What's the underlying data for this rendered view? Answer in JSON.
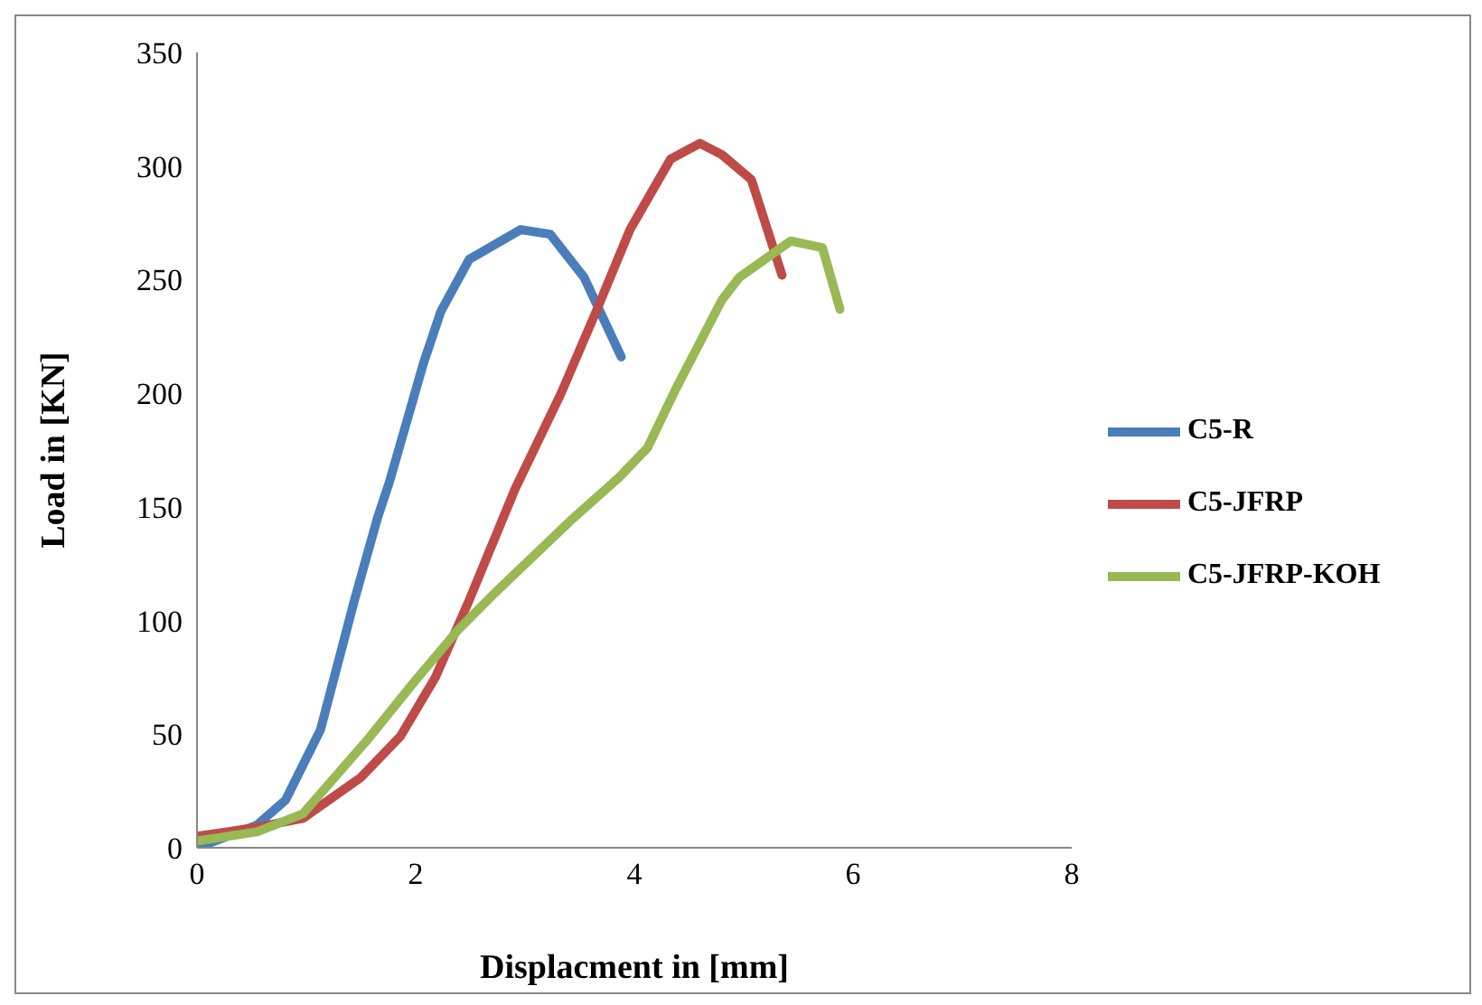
{
  "chart_data": {
    "type": "line",
    "xlabel": "Displacment in [mm]",
    "ylabel": "Load in [KN]",
    "xlim": [
      0,
      8
    ],
    "xticks": [
      0,
      2,
      4,
      6,
      8
    ],
    "ylim": [
      0,
      350
    ],
    "yticks": [
      0,
      50,
      100,
      150,
      200,
      250,
      300,
      350
    ],
    "grid": false,
    "legend": "right",
    "marker": "none",
    "line_style": "solid",
    "series": [
      {
        "name": "C5-R",
        "color": "#4a7ebb",
        "x": [
          0,
          0.55,
          0.81,
          1.13,
          1.44,
          1.65,
          1.76,
          2.07,
          2.23,
          2.49,
          2.96,
          3.23,
          3.54,
          3.88
        ],
        "values": [
          0,
          10,
          21,
          52,
          109,
          145,
          161,
          213,
          236,
          259,
          272,
          270,
          251,
          216
        ]
      },
      {
        "name": "C5-JFRP",
        "color": "#be4b48",
        "x": [
          0,
          0.55,
          0.97,
          1.5,
          1.86,
          2.18,
          2.49,
          2.91,
          3.33,
          3.65,
          3.96,
          4.33,
          4.6,
          4.8,
          5.07,
          5.35
        ],
        "values": [
          5,
          9,
          13,
          31,
          49,
          75,
          109,
          158,
          200,
          236,
          272,
          303,
          310,
          305,
          294,
          252
        ]
      },
      {
        "name": "C5-JFRP-KOH",
        "color": "#98b954",
        "x": [
          0,
          0.55,
          0.97,
          1.55,
          1.97,
          2.39,
          2.7,
          3.44,
          3.86,
          4.12,
          4.38,
          4.8,
          4.96,
          5.43,
          5.72,
          5.88
        ],
        "values": [
          3,
          7,
          15,
          47,
          72,
          96,
          111,
          145,
          163,
          176,
          202,
          241,
          251,
          267,
          264,
          237
        ]
      }
    ]
  }
}
